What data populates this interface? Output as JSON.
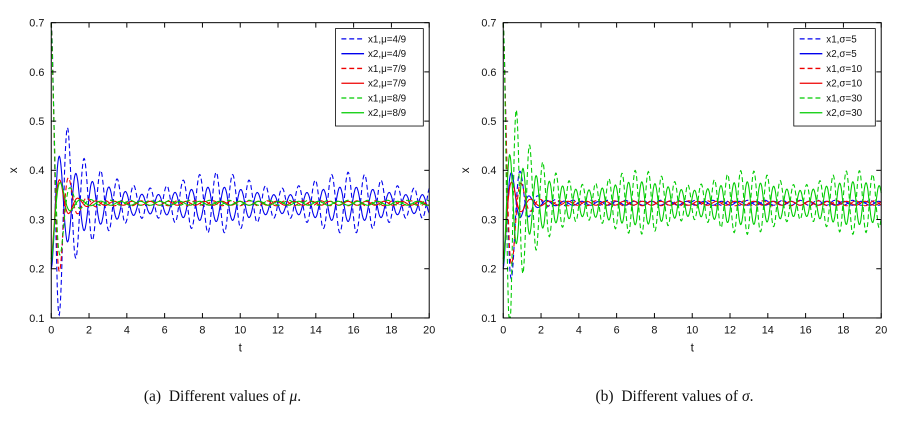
{
  "figure": {
    "background": "#ffffff",
    "axis_color": "#000000"
  },
  "chart_data": [
    {
      "type": "line",
      "title": "",
      "caption": {
        "marker": "(a)",
        "text": "Different values of",
        "symbol": "μ",
        "period": "."
      },
      "xlabel": "t",
      "ylabel": "x",
      "xlim": [
        0,
        20
      ],
      "ylim": [
        0.1,
        0.7
      ],
      "xticks": [
        0,
        2,
        4,
        6,
        8,
        10,
        12,
        14,
        16,
        18,
        20
      ],
      "xtick_labels": [
        "0",
        "2",
        "4",
        "6",
        "8",
        "10",
        "12",
        "14",
        "16",
        "18",
        "20"
      ],
      "yticks": [
        0.1,
        0.2,
        0.3,
        0.4,
        0.5,
        0.6,
        0.7
      ],
      "ytick_labels": [
        "0.1",
        "0.2",
        "0.3",
        "0.4",
        "0.5",
        "0.6",
        "0.7"
      ],
      "grid": false,
      "legend_position": "upper-right",
      "series": [
        {
          "label": "x1,μ=4/9",
          "color": "#0000ee",
          "line_style": "dashed",
          "start": 0.7,
          "equilibrium": 0.334,
          "transient_amplitude": 0.366,
          "sustained_amplitude": 0.046,
          "decay": 1.4,
          "frequency": 7.2,
          "phase": 0,
          "mod_depth": 0.35,
          "mod_frequency": 0.9
        },
        {
          "label": "x2,μ=4/9",
          "color": "#0000ee",
          "line_style": "solid",
          "start": 0.2,
          "equilibrium": 0.331,
          "transient_amplitude": 0.131,
          "sustained_amplitude": 0.027,
          "decay": 1.0,
          "frequency": 7.2,
          "phase": 3.1416,
          "mod_depth": 0.3,
          "mod_frequency": 0.9
        },
        {
          "label": "x1,μ=7/9",
          "color": "#ee0000",
          "line_style": "dashed",
          "start": 0.7,
          "equilibrium": 0.333,
          "transient_amplitude": 0.367,
          "sustained_amplitude": 0.005,
          "decay": 2.2,
          "frequency": 6.6,
          "phase": 0,
          "mod_depth": 0,
          "mod_frequency": 0
        },
        {
          "label": "x2,μ=7/9",
          "color": "#ee0000",
          "line_style": "solid",
          "start": 0.22,
          "equilibrium": 0.333,
          "transient_amplitude": 0.113,
          "sustained_amplitude": 0.004,
          "decay": 2.0,
          "frequency": 6.6,
          "phase": 3.1416,
          "mod_depth": 0,
          "mod_frequency": 0
        },
        {
          "label": "x1,μ=8/9",
          "color": "#00cc00",
          "line_style": "dashed",
          "start": 0.7,
          "equilibrium": 0.334,
          "transient_amplitude": 0.366,
          "sustained_amplitude": 0.005,
          "decay": 2.6,
          "frequency": 6.0,
          "phase": 0,
          "mod_depth": 0,
          "mod_frequency": 0
        },
        {
          "label": "x2,μ=8/9",
          "color": "#00cc00",
          "line_style": "solid",
          "start": 0.21,
          "equilibrium": 0.333,
          "transient_amplitude": 0.123,
          "sustained_amplitude": 0.004,
          "decay": 2.3,
          "frequency": 6.0,
          "phase": 3.1416,
          "mod_depth": 0,
          "mod_frequency": 0
        }
      ]
    },
    {
      "type": "line",
      "title": "",
      "caption": {
        "marker": "(b)",
        "text": "Different values of",
        "symbol": "σ",
        "period": "."
      },
      "xlabel": "t",
      "ylabel": "x",
      "xlim": [
        0,
        20
      ],
      "ylim": [
        0.1,
        0.7
      ],
      "xticks": [
        0,
        2,
        4,
        6,
        8,
        10,
        12,
        14,
        16,
        18,
        20
      ],
      "xtick_labels": [
        "0",
        "2",
        "4",
        "6",
        "8",
        "10",
        "12",
        "14",
        "16",
        "18",
        "20"
      ],
      "yticks": [
        0.1,
        0.2,
        0.3,
        0.4,
        0.5,
        0.6,
        0.7
      ],
      "ytick_labels": [
        "0.1",
        "0.2",
        "0.3",
        "0.4",
        "0.5",
        "0.6",
        "0.7"
      ],
      "grid": false,
      "legend_position": "upper-right",
      "series": [
        {
          "label": "x1,σ=5",
          "color": "#0000ee",
          "line_style": "dashed",
          "start": 0.7,
          "equilibrium": 0.334,
          "transient_amplitude": 0.366,
          "sustained_amplitude": 0.005,
          "decay": 2.0,
          "frequency": 6.8,
          "phase": 0,
          "mod_depth": 0,
          "mod_frequency": 0
        },
        {
          "label": "x2,σ=5",
          "color": "#0000ee",
          "line_style": "solid",
          "start": 0.2,
          "equilibrium": 0.333,
          "transient_amplitude": 0.133,
          "sustained_amplitude": 0.004,
          "decay": 1.8,
          "frequency": 6.8,
          "phase": 3.1416,
          "mod_depth": 0,
          "mod_frequency": 0
        },
        {
          "label": "x1,σ=10",
          "color": "#ee0000",
          "line_style": "dashed",
          "start": 0.7,
          "equilibrium": 0.333,
          "transient_amplitude": 0.367,
          "sustained_amplitude": 0.005,
          "decay": 2.4,
          "frequency": 6.4,
          "phase": 0,
          "mod_depth": 0,
          "mod_frequency": 0
        },
        {
          "label": "x2,σ=10",
          "color": "#ee0000",
          "line_style": "solid",
          "start": 0.22,
          "equilibrium": 0.333,
          "transient_amplitude": 0.113,
          "sustained_amplitude": 0.004,
          "decay": 2.2,
          "frequency": 6.4,
          "phase": 3.1416,
          "mod_depth": 0,
          "mod_frequency": 0
        },
        {
          "label": "x1,σ=30",
          "color": "#00cc00",
          "line_style": "dashed",
          "start": 0.7,
          "equilibrium": 0.335,
          "transient_amplitude": 0.365,
          "sustained_amplitude": 0.05,
          "decay": 1.3,
          "frequency": 9.0,
          "phase": 0,
          "mod_depth": 0.3,
          "mod_frequency": 1.1
        },
        {
          "label": "x2,σ=30",
          "color": "#00cc00",
          "line_style": "solid",
          "start": 0.21,
          "equilibrium": 0.333,
          "transient_amplitude": 0.123,
          "sustained_amplitude": 0.035,
          "decay": 1.1,
          "frequency": 9.0,
          "phase": 3.1416,
          "mod_depth": 0.25,
          "mod_frequency": 1.1
        }
      ]
    }
  ]
}
